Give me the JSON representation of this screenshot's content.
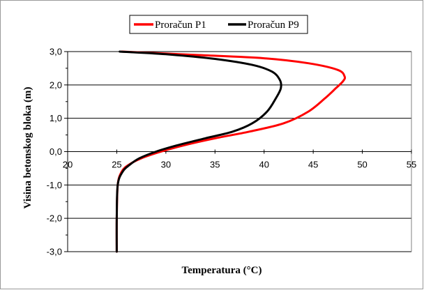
{
  "chart_data": {
    "type": "line",
    "title": "",
    "xlabel": "Temperatura (°C)",
    "ylabel": "Visina betonskog bloka (m)",
    "xlim": [
      20,
      55
    ],
    "ylim": [
      -3,
      3
    ],
    "x_ticks": [
      20,
      25,
      30,
      35,
      40,
      45,
      50,
      55
    ],
    "y_ticks": [
      3,
      2,
      1,
      0,
      -1,
      -2,
      -3
    ],
    "x_tick_labels": [
      "20",
      "25",
      "30",
      "35",
      "40",
      "45",
      "50",
      "55"
    ],
    "y_tick_labels": [
      "3,0",
      "2,0",
      "1,0",
      "0,0",
      "-1,0",
      "-2,0",
      "-3,0"
    ],
    "grid": "horizontal",
    "legend_position": "top",
    "series": [
      {
        "name": "Proračun P1",
        "color": "#ff0000",
        "points": [
          [
            25,
            -3.0
          ],
          [
            25,
            -2.0
          ],
          [
            25.1,
            -1.0
          ],
          [
            25.5,
            -0.6
          ],
          [
            26.2,
            -0.4
          ],
          [
            27.5,
            -0.2
          ],
          [
            29.5,
            0.0
          ],
          [
            32.0,
            0.2
          ],
          [
            35.0,
            0.4
          ],
          [
            38.5,
            0.6
          ],
          [
            42.0,
            0.85
          ],
          [
            44.5,
            1.2
          ],
          [
            46.2,
            1.6
          ],
          [
            47.3,
            1.9
          ],
          [
            48.0,
            2.1
          ],
          [
            48.2,
            2.25
          ],
          [
            47.5,
            2.45
          ],
          [
            44.5,
            2.65
          ],
          [
            40.0,
            2.8
          ],
          [
            33.0,
            2.9
          ],
          [
            25.5,
            3.0
          ]
        ]
      },
      {
        "name": "Proračun P9",
        "color": "#000000",
        "points": [
          [
            25,
            -3.0
          ],
          [
            25,
            -2.0
          ],
          [
            25.1,
            -1.0
          ],
          [
            25.6,
            -0.6
          ],
          [
            26.3,
            -0.4
          ],
          [
            27.3,
            -0.2
          ],
          [
            29.0,
            0.0
          ],
          [
            31.3,
            0.2
          ],
          [
            34.0,
            0.4
          ],
          [
            36.8,
            0.6
          ],
          [
            38.8,
            0.85
          ],
          [
            40.3,
            1.2
          ],
          [
            41.2,
            1.6
          ],
          [
            41.7,
            1.9
          ],
          [
            41.6,
            2.15
          ],
          [
            40.8,
            2.4
          ],
          [
            38.8,
            2.6
          ],
          [
            35.0,
            2.78
          ],
          [
            30.0,
            2.92
          ],
          [
            25.3,
            3.0
          ]
        ]
      }
    ]
  }
}
